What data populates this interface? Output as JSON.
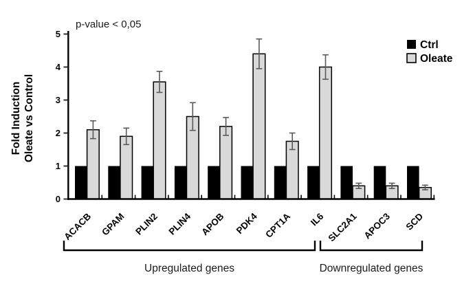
{
  "chart_data": {
    "type": "bar",
    "title": "",
    "annotation": "p-value < 0,05",
    "ylabel_lines": [
      "Fold Induction",
      "Oleate vs Control"
    ],
    "categories": [
      "ACACB",
      "GPAM",
      "PLIN2",
      "PLIN4",
      "APOB",
      "PDK4",
      "CPT1A",
      "IL6",
      "SLC2A1",
      "APOC3",
      "SCD"
    ],
    "series": [
      {
        "name": "Ctrl",
        "color": "#000000",
        "values": [
          1,
          1,
          1,
          1,
          1,
          1,
          1,
          1,
          1,
          1,
          1
        ]
      },
      {
        "name": "Oleate",
        "color": "#d9d9d9",
        "values": [
          2.1,
          1.9,
          3.55,
          2.5,
          2.2,
          4.4,
          1.75,
          4.0,
          0.4,
          0.4,
          0.35
        ],
        "errors": [
          0.27,
          0.25,
          0.32,
          0.42,
          0.27,
          0.45,
          0.25,
          0.37,
          0.08,
          0.08,
          0.07
        ]
      }
    ],
    "ylim": [
      0,
      5
    ],
    "yticks": [
      0,
      1,
      2,
      3,
      4,
      5
    ],
    "grid": false,
    "legend_position": "top-right",
    "error_bar_color": "#595959",
    "category_groups": [
      {
        "label": "Upregulated genes",
        "from": 0,
        "to": 7
      },
      {
        "label": "Downregulated genes",
        "from": 8,
        "to": 10
      }
    ]
  }
}
